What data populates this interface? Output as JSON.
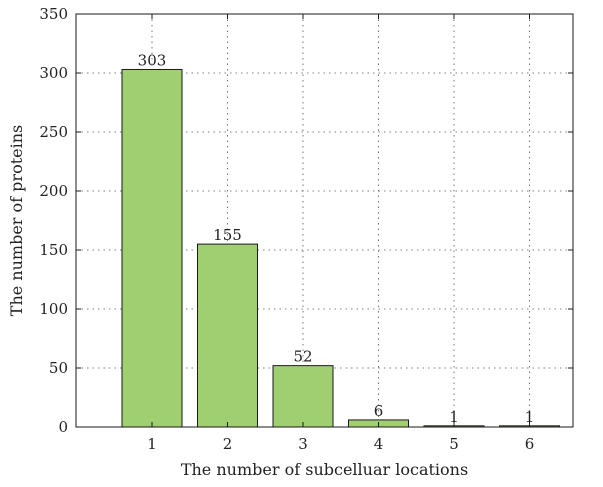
{
  "chart_data": {
    "type": "bar",
    "categories": [
      "1",
      "2",
      "3",
      "4",
      "5",
      "6"
    ],
    "values": [
      303,
      155,
      52,
      6,
      1,
      1
    ],
    "data_labels": [
      "303",
      "155",
      "52",
      "6",
      "1",
      "1"
    ],
    "title": "",
    "xlabel": "The number of subcelluar locations",
    "ylabel": "The number of proteins",
    "ylim": [
      0,
      350
    ],
    "yticks": [
      0,
      50,
      100,
      150,
      200,
      250,
      300,
      350
    ],
    "ytick_labels": [
      "0",
      "50",
      "100",
      "150",
      "200",
      "250",
      "300",
      "350"
    ],
    "grid": true,
    "grid_style": "dotted",
    "legend": "none",
    "bar_color": "#a0cf72",
    "bar_edge_color": "#1a1a1a"
  }
}
